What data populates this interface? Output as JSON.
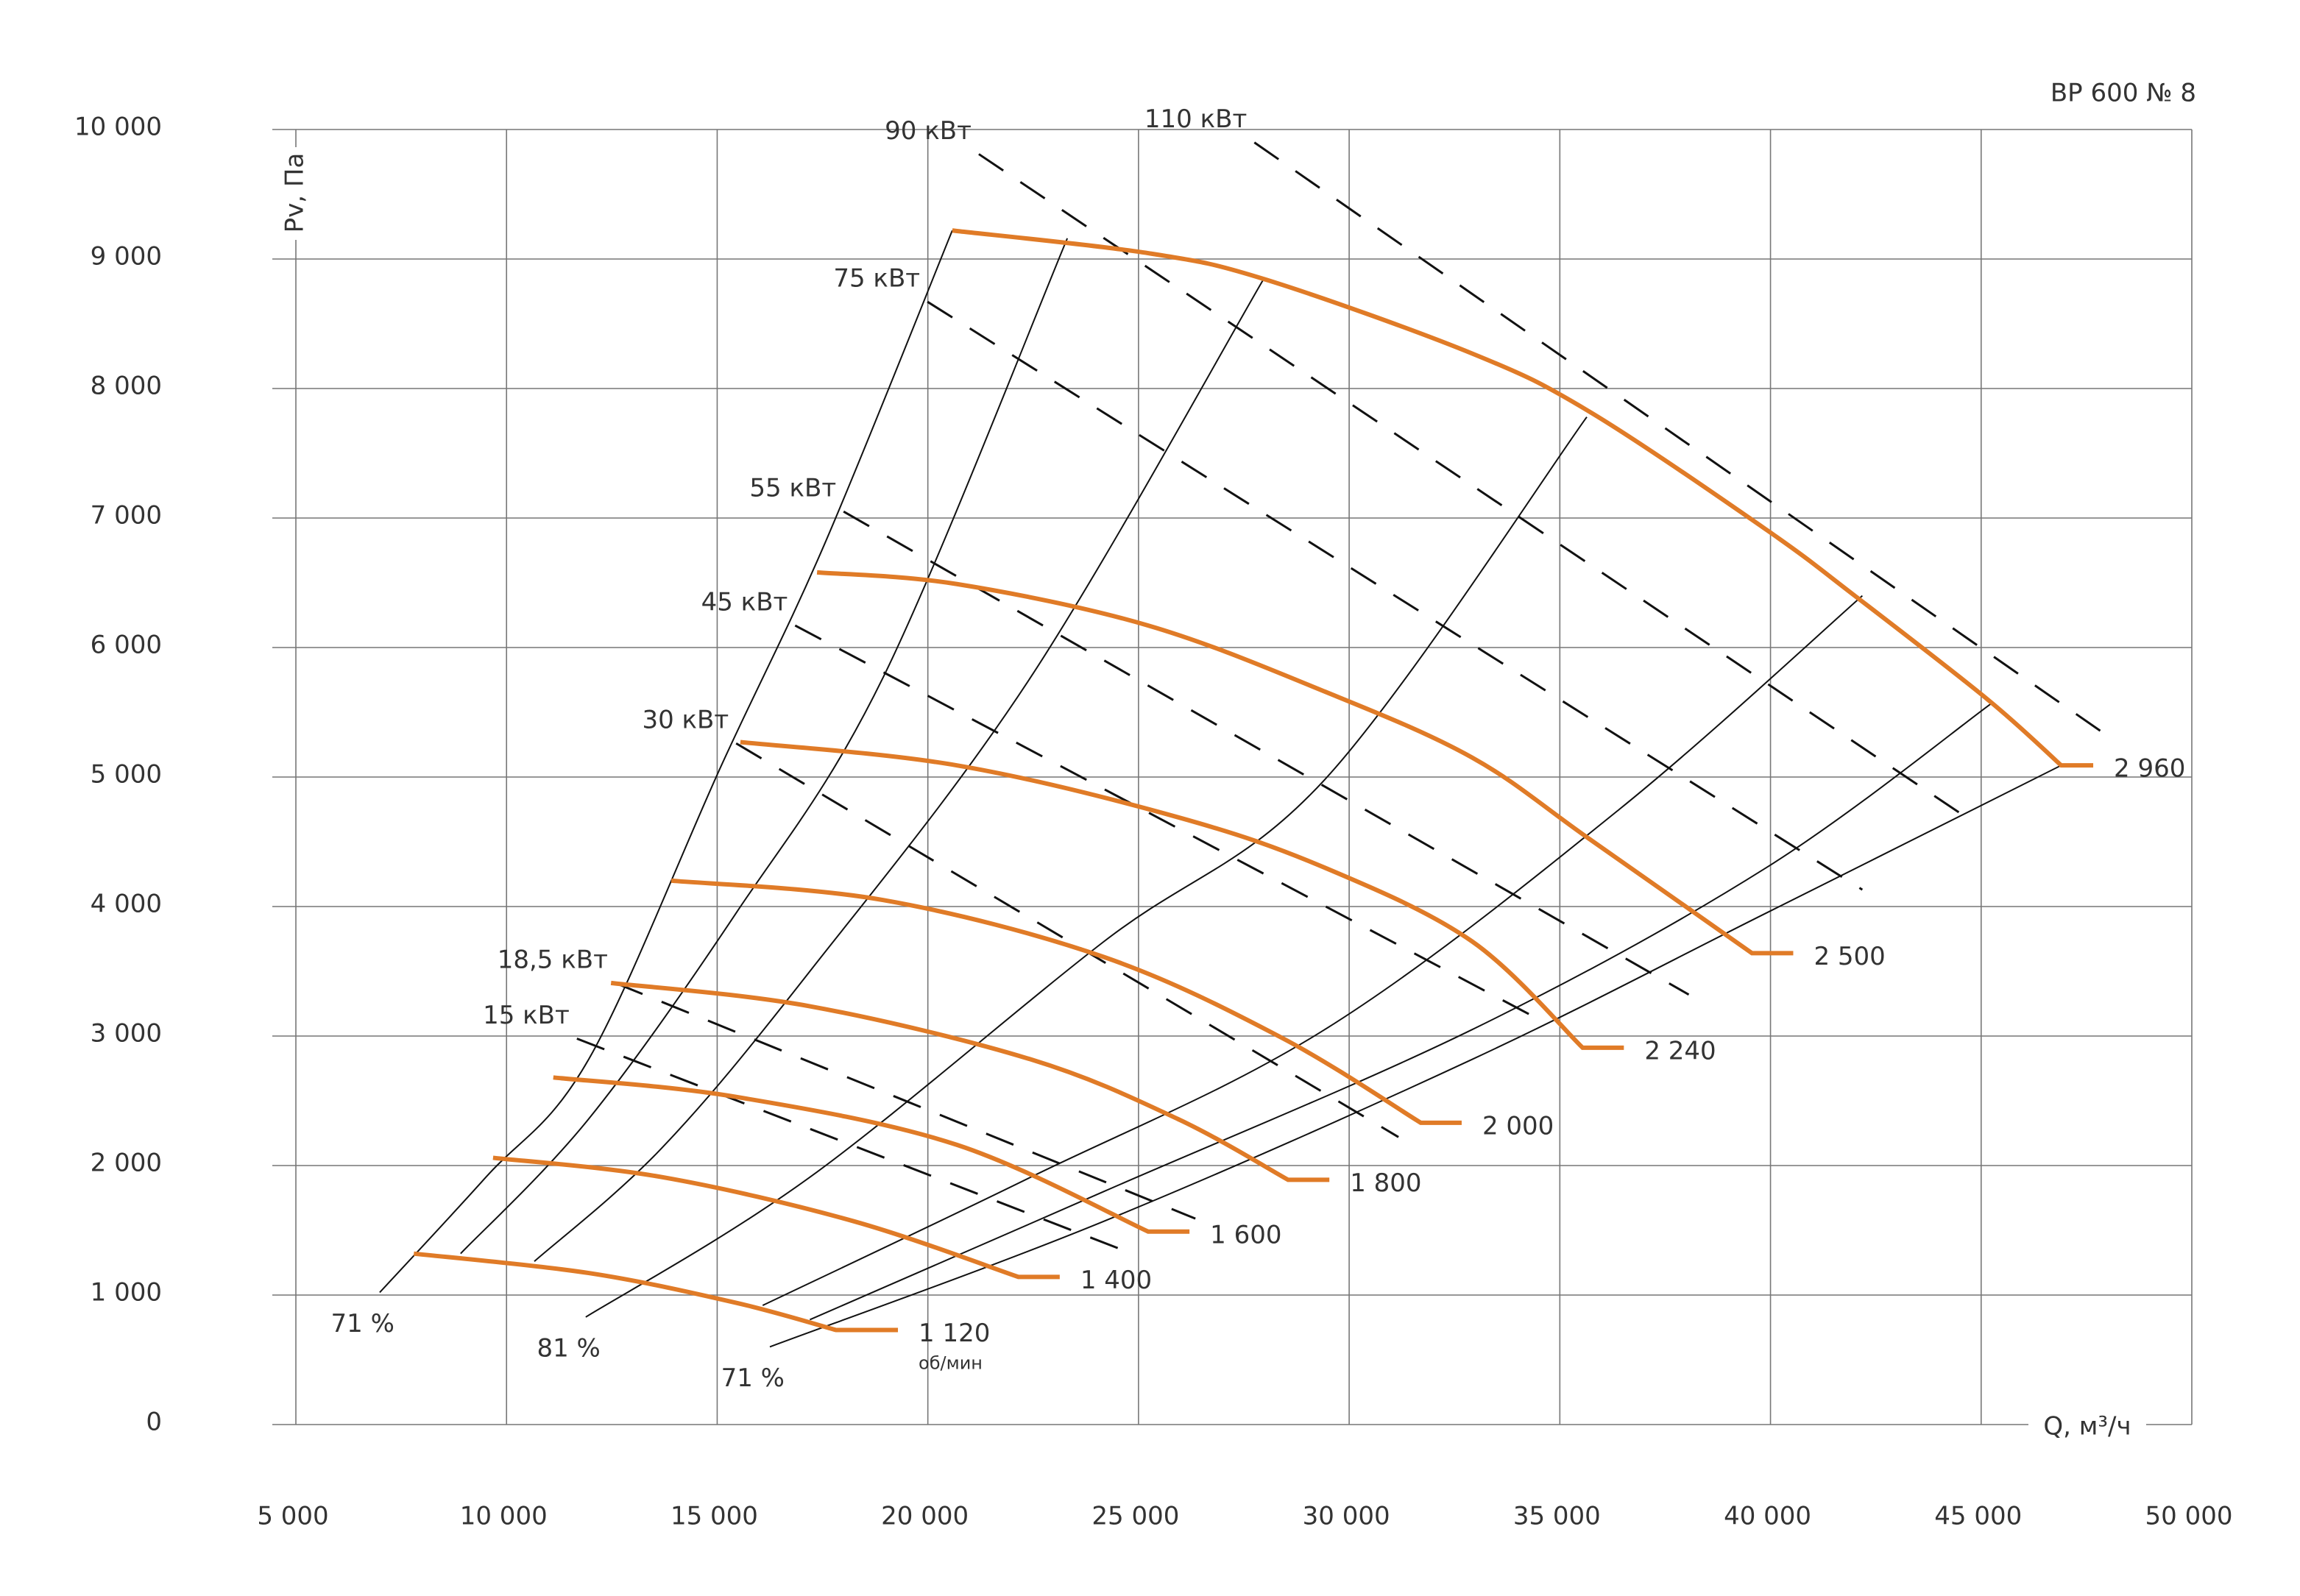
{
  "chart_data": {
    "type": "line",
    "title": "ВР 600 № 8",
    "y_label": "Pv, Па",
    "x_label": "Q, м³/ч",
    "rpm_unit": "об/мин",
    "xlim": [
      5000,
      50000
    ],
    "ylim": [
      0,
      10000
    ],
    "xticks": [
      {
        "value": 5000,
        "label": "5 000"
      },
      {
        "value": 10000,
        "label": "10 000"
      },
      {
        "value": 15000,
        "label": "15 000"
      },
      {
        "value": 20000,
        "label": "20 000"
      },
      {
        "value": 25000,
        "label": "25 000"
      },
      {
        "value": 30000,
        "label": "30 000"
      },
      {
        "value": 35000,
        "label": "35 000"
      },
      {
        "value": 40000,
        "label": "40 000"
      },
      {
        "value": 45000,
        "label": "45 000"
      },
      {
        "value": 50000,
        "label": "50 000"
      }
    ],
    "yticks": [
      0,
      {
        "value": 1000,
        "label": "1 000"
      },
      {
        "value": 2000,
        "label": "2 000"
      },
      {
        "value": 3000,
        "label": "3 000"
      },
      {
        "value": 4000,
        "label": "4 000"
      },
      {
        "value": 5000,
        "label": "5 000"
      },
      {
        "value": 6000,
        "label": "6 000"
      },
      {
        "value": 7000,
        "label": "7 000"
      },
      {
        "value": 8000,
        "label": "8 000"
      },
      {
        "value": 9000,
        "label": "9 000"
      },
      {
        "value": 10000,
        "label": "10 000"
      }
    ],
    "grid": true,
    "series": [
      {
        "name": "1 120",
        "color": "#e07b27",
        "x": [
          7800,
          11950,
          15450,
          17820,
          19290
        ],
        "values": [
          1320,
          1170,
          940,
          730,
          730
        ]
      },
      {
        "name": "1 400",
        "color": "#e07b27",
        "x": [
          9680,
          13700,
          18240,
          22150,
          23130
        ],
        "values": [
          2060,
          1910,
          1570,
          1140,
          1140
        ]
      },
      {
        "name": "1 600",
        "color": "#e07b27",
        "x": [
          11110,
          15450,
          20690,
          25230,
          26210
        ],
        "values": [
          2680,
          2530,
          2160,
          1490,
          1490
        ]
      },
      {
        "name": "1 800",
        "color": "#e07b27",
        "x": [
          12480,
          17200,
          22440,
          25930,
          28550,
          29530
        ],
        "values": [
          3410,
          3230,
          2820,
          2360,
          1890,
          1890
        ]
      },
      {
        "name": "2 000",
        "color": "#e07b27",
        "x": [
          13910,
          18940,
          24180,
          28380,
          31700,
          32670
        ],
        "values": [
          4200,
          4050,
          3610,
          2990,
          2330,
          2330
        ]
      },
      {
        "name": "2 240",
        "color": "#e07b27",
        "x": [
          15550,
          20690,
          25930,
          29420,
          32920,
          35540,
          36520
        ],
        "values": [
          5270,
          5090,
          4690,
          4300,
          3730,
          2910,
          2910
        ]
      },
      {
        "name": "2 500",
        "color": "#e07b27",
        "x": [
          17370,
          20690,
          25230,
          29420,
          32920,
          35710,
          39560,
          40540
        ],
        "values": [
          6580,
          6490,
          6170,
          5660,
          5150,
          4520,
          3640,
          3640
        ]
      },
      {
        "name": "2 960",
        "color": "#e07b27",
        "x": [
          20580,
          25230,
          28030,
          32920,
          35710,
          39900,
          42000,
          45150,
          46900,
          47660
        ],
        "values": [
          9220,
          9045,
          8840,
          8270,
          7820,
          6910,
          6400,
          5600,
          5090,
          5090
        ]
      }
    ],
    "efficiency_lines": [
      {
        "label": "71 %",
        "x": [
          6990,
          9510,
          11950,
          15100,
          17550,
          20580
        ],
        "values": [
          1020,
          1910,
          2820,
          5090,
          6800,
          9220
        ]
      },
      {
        "x": [
          8910,
          11950,
          15450,
          18940,
          23310
        ],
        "values": [
          1320,
          2360,
          3950,
          5770,
          9160
        ]
      },
      {
        "x": [
          10660,
          13700,
          17200,
          22440,
          27960
        ],
        "values": [
          1260,
          2140,
          3500,
          5770,
          8840
        ]
      },
      {
        "label": "81 %",
        "x": [
          11880,
          17200,
          24180,
          29420,
          35640
        ],
        "values": [
          830,
          1910,
          3730,
          4980,
          7780
        ]
      },
      {
        "x": [
          16080,
          22440,
          29420,
          36410,
          42180
        ],
        "values": [
          920,
          1910,
          3050,
          4750,
          6400
        ]
      },
      {
        "x": [
          17200,
          24180,
          32920,
          39900,
          45250
        ],
        "values": [
          810,
          1800,
          3050,
          4300,
          5570
        ]
      },
      {
        "label": "71 %",
        "x": [
          16250,
          24180,
          32920,
          39900,
          46900
        ],
        "values": [
          600,
          1570,
          2820,
          3950,
          5090
        ]
      }
    ],
    "power_lines": [
      {
        "label": "110 кВт",
        "x": [
          27750,
          47990
        ],
        "values": [
          9900,
          5320
        ]
      },
      {
        "label": "90 кВт",
        "x": [
          21210,
          44870
        ],
        "values": [
          9810,
          4640
        ]
      },
      {
        "label": "75 кВт",
        "x": [
          19990,
          42180
        ],
        "values": [
          8670,
          4130
        ]
      },
      {
        "label": "55 кВт",
        "x": [
          18000,
          38060
        ],
        "values": [
          7050,
          3320
        ]
      },
      {
        "label": "45 кВт",
        "x": [
          16850,
          34320
        ],
        "values": [
          6170,
          3160
        ]
      },
      {
        "label": "30 кВт",
        "x": [
          15450,
          31170
        ],
        "values": [
          5260,
          2220
        ]
      },
      {
        "label": "18,5 кВт",
        "x": [
          12580,
          26350
        ],
        "values": [
          3410,
          1590
        ]
      },
      {
        "label": "15 кВт",
        "x": [
          11670,
          24530
        ],
        "values": [
          2980,
          1360
        ]
      }
    ]
  }
}
